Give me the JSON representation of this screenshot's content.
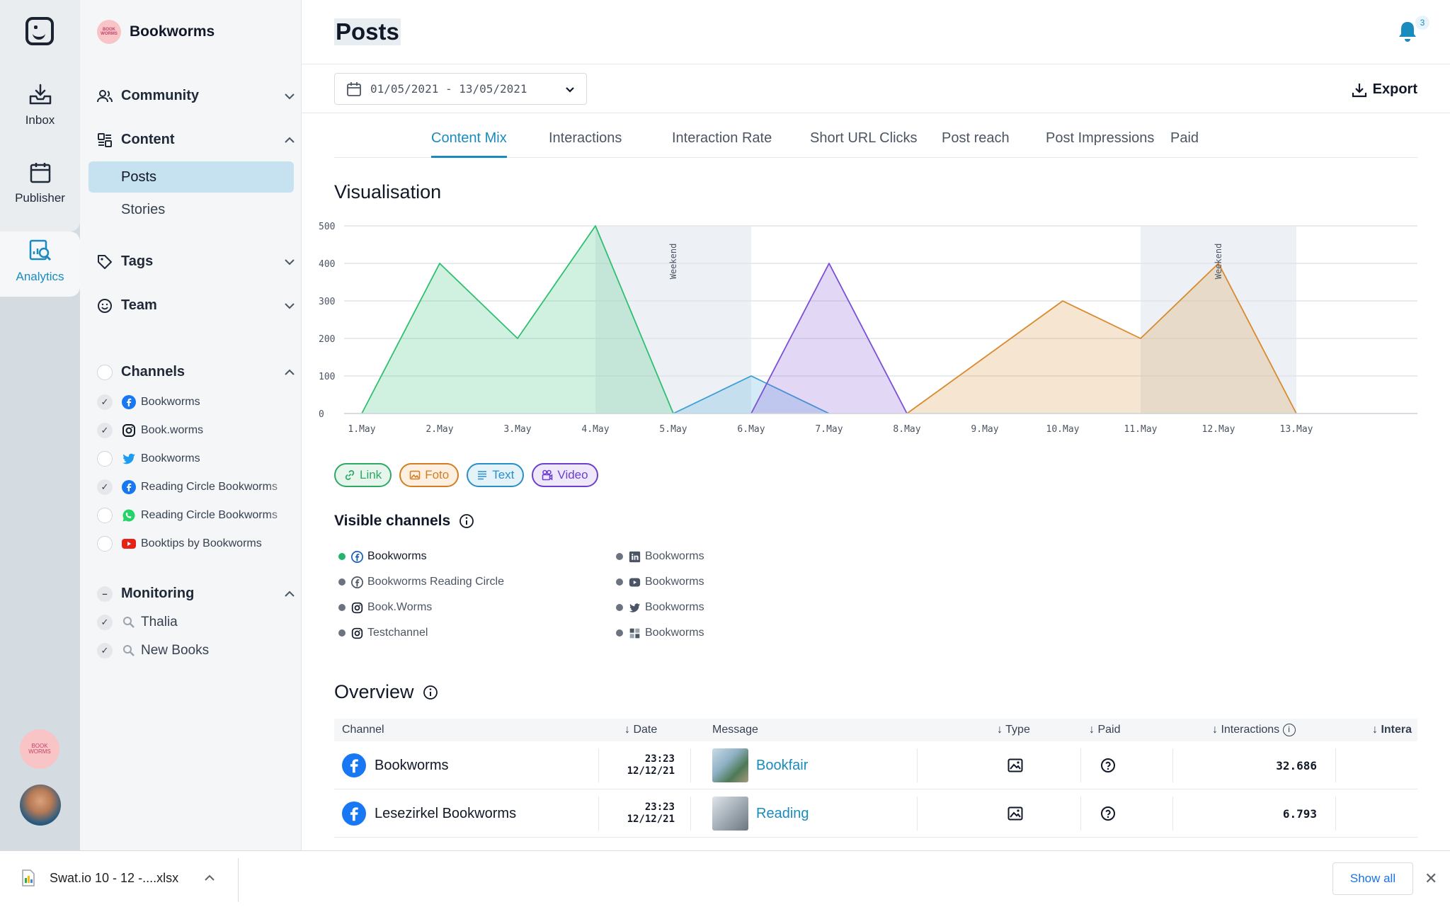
{
  "rail": {
    "inbox": "Inbox",
    "publisher": "Publisher",
    "analytics": "Analytics",
    "workspace_logo_text": "BOOK WORMS"
  },
  "sidebar": {
    "workspace": "Bookworms",
    "community": "Community",
    "content": "Content",
    "posts": "Posts",
    "stories": "Stories",
    "tags": "Tags",
    "team": "Team",
    "channels_title": "Channels",
    "channels": [
      {
        "label": "Bookworms",
        "network": "facebook",
        "checked": true
      },
      {
        "label": "Book.worms",
        "network": "instagram",
        "checked": true
      },
      {
        "label": "Bookworms",
        "network": "twitter",
        "checked": false
      },
      {
        "label": "Reading Circle Bookworms",
        "network": "facebook",
        "checked": true
      },
      {
        "label": "Reading Circle Bookworms",
        "network": "whatsapp",
        "checked": false
      },
      {
        "label": "Booktips by Bookworms",
        "network": "youtube",
        "checked": false
      }
    ],
    "monitoring_title": "Monitoring",
    "monitoring": [
      {
        "label": "Thalia",
        "checked": true
      },
      {
        "label": "New Books",
        "checked": true
      }
    ]
  },
  "header": {
    "title": "Posts",
    "notifications": "3",
    "date_range": "01/05/2021 - 13/05/2021",
    "export": "Export"
  },
  "tabs": [
    "Content Mix",
    "Interactions",
    "Interaction Rate",
    "Short URL Clicks",
    "Post reach",
    "Post Impressions",
    "Paid"
  ],
  "visualisation": {
    "title": "Visualisation",
    "weekend_label": "Weekend"
  },
  "chart_data": {
    "type": "area",
    "title": "Visualisation",
    "categories": [
      "1.May",
      "2.May",
      "3.May",
      "4.May",
      "5.May",
      "6.May",
      "7.May",
      "8.May",
      "9.May",
      "10.May",
      "11.May",
      "12.May",
      "13.May"
    ],
    "ylim": [
      0,
      500
    ],
    "yticks": [
      0,
      100,
      200,
      300,
      400,
      500
    ],
    "grid": true,
    "weekends": [
      [
        3,
        5
      ],
      [
        10,
        12
      ]
    ],
    "series": [
      {
        "name": "Link",
        "color": "#2fbf71",
        "values": [
          0,
          400,
          200,
          500,
          0,
          0,
          0,
          0,
          0,
          0,
          0,
          0,
          0
        ]
      },
      {
        "name": "Text",
        "color": "#3a9fd6",
        "values": [
          0,
          0,
          0,
          0,
          0,
          100,
          0,
          0,
          0,
          0,
          0,
          0,
          0
        ]
      },
      {
        "name": "Video",
        "color": "#7b4fd6",
        "values": [
          0,
          0,
          0,
          0,
          0,
          0,
          400,
          0,
          0,
          0,
          0,
          0,
          0
        ]
      },
      {
        "name": "Foto",
        "color": "#d88a2e",
        "values": [
          0,
          0,
          0,
          0,
          0,
          0,
          0,
          0,
          150,
          300,
          200,
          400,
          0
        ]
      }
    ]
  },
  "legend": [
    {
      "label": "Link",
      "color": "#2fa866",
      "bg": "#e6f6ec"
    },
    {
      "label": "Foto",
      "color": "#d47d25",
      "bg": "#fdf0e1"
    },
    {
      "label": "Text",
      "color": "#2b8fc7",
      "bg": "#e4f2fa"
    },
    {
      "label": "Video",
      "color": "#6b3fd0",
      "bg": "#efe8fb"
    }
  ],
  "visible_channels": {
    "title": "Visible channels",
    "left": [
      {
        "label": "Bookworms",
        "network": "facebook",
        "active": true
      },
      {
        "label": "Bookworms Reading Circle",
        "network": "facebook",
        "active": false
      },
      {
        "label": "Book.Worms",
        "network": "instagram",
        "active": false
      },
      {
        "label": "Testchannel",
        "network": "instagram",
        "active": false
      }
    ],
    "right": [
      {
        "label": "Bookworms",
        "network": "linkedin",
        "active": false
      },
      {
        "label": "Bookworms",
        "network": "youtube",
        "active": false
      },
      {
        "label": "Bookworms",
        "network": "twitter",
        "active": false
      },
      {
        "label": "Bookworms",
        "network": "other",
        "active": false
      }
    ]
  },
  "overview": {
    "title": "Overview",
    "columns": {
      "channel": "Channel",
      "date": "Date",
      "message": "Message",
      "type": "Type",
      "paid": "Paid",
      "interactions": "Interactions",
      "extra": "Intera"
    },
    "rows": [
      {
        "channel": "Bookworms",
        "time": "23:23",
        "date": "12/12/21",
        "message": "Bookfair",
        "interactions": "32.686"
      },
      {
        "channel": "Lesezirkel Bookworms",
        "time": "23:23",
        "date": "12/12/21",
        "message": "Reading",
        "interactions": "6.793"
      }
    ]
  },
  "download_bar": {
    "file": "Swat.io 10 - 12 -....xlsx",
    "show_all": "Show all"
  }
}
